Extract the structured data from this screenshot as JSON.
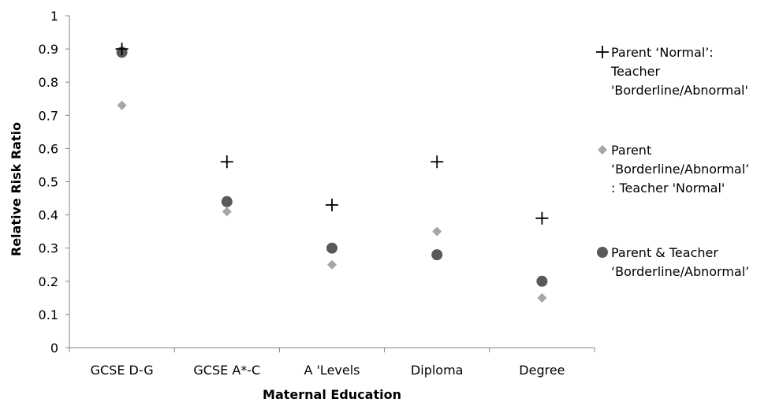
{
  "chart_data": {
    "type": "scatter",
    "xlabel": "Maternal Education",
    "ylabel": "Relative Risk Ratio",
    "categories": [
      "GCSE D-G",
      "GCSE A*-C",
      "A 'Levels",
      "Diploma",
      "Degree"
    ],
    "ylim": [
      0,
      1
    ],
    "yticks": [
      "0",
      "0.1",
      "0.2",
      "0.3",
      "0.4",
      "0.5",
      "0.6",
      "0.7",
      "0.8",
      "0.9",
      "1"
    ],
    "grid": false,
    "legend_position": "right",
    "series": [
      {
        "name_lines": [
          "Parent ‘Normal’:",
          "Teacher",
          "'Borderline/Abnormal'"
        ],
        "marker": "plus",
        "color": "#000000",
        "values": [
          0.9,
          0.56,
          0.43,
          0.56,
          0.39
        ]
      },
      {
        "name_lines": [
          "Parent",
          "‘Borderline/Abnormal’",
          ": Teacher 'Normal'"
        ],
        "marker": "diamond",
        "color": "#a6a6a6",
        "values": [
          0.73,
          0.41,
          0.25,
          0.35,
          0.15
        ]
      },
      {
        "name_lines": [
          "Parent & Teacher",
          "‘Borderline/Abnormal’"
        ],
        "marker": "circle",
        "color": "#595959",
        "values": [
          0.89,
          0.44,
          0.3,
          0.28,
          0.2
        ]
      }
    ]
  }
}
